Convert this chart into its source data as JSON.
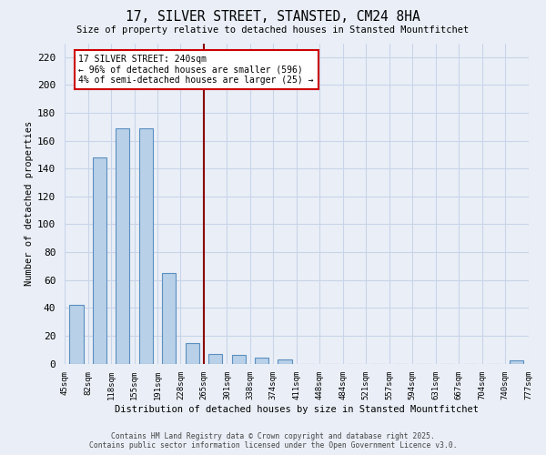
{
  "title": "17, SILVER STREET, STANSTED, CM24 8HA",
  "subtitle": "Size of property relative to detached houses in Stansted Mountfitchet",
  "xlabel": "Distribution of detached houses by size in Stansted Mountfitchet",
  "ylabel": "Number of detached properties",
  "bar_values": [
    42,
    148,
    169,
    169,
    65,
    15,
    7,
    6,
    4,
    3,
    0,
    0,
    0,
    0,
    0,
    0,
    0,
    0,
    0,
    2
  ],
  "bin_labels": [
    "45sqm",
    "82sqm",
    "118sqm",
    "155sqm",
    "191sqm",
    "228sqm",
    "265sqm",
    "301sqm",
    "338sqm",
    "374sqm",
    "411sqm",
    "448sqm",
    "484sqm",
    "521sqm",
    "557sqm",
    "594sqm",
    "631sqm",
    "667sqm",
    "704sqm",
    "740sqm",
    "777sqm"
  ],
  "bar_color": "#b8d0e8",
  "bar_edge_color": "#5a8fc0",
  "vline_color": "#8b0000",
  "annotation_text": "17 SILVER STREET: 240sqm\n← 96% of detached houses are smaller (596)\n4% of semi-detached houses are larger (25) →",
  "annotation_box_color": "white",
  "annotation_box_edge": "#cc0000",
  "ylim": [
    0,
    230
  ],
  "yticks": [
    0,
    20,
    40,
    60,
    80,
    100,
    120,
    140,
    160,
    180,
    200,
    220
  ],
  "bg_color": "#eaeff7",
  "grid_color": "#c8d4e8",
  "footer_line1": "Contains HM Land Registry data © Crown copyright and database right 2025.",
  "footer_line2": "Contains public sector information licensed under the Open Government Licence v3.0."
}
